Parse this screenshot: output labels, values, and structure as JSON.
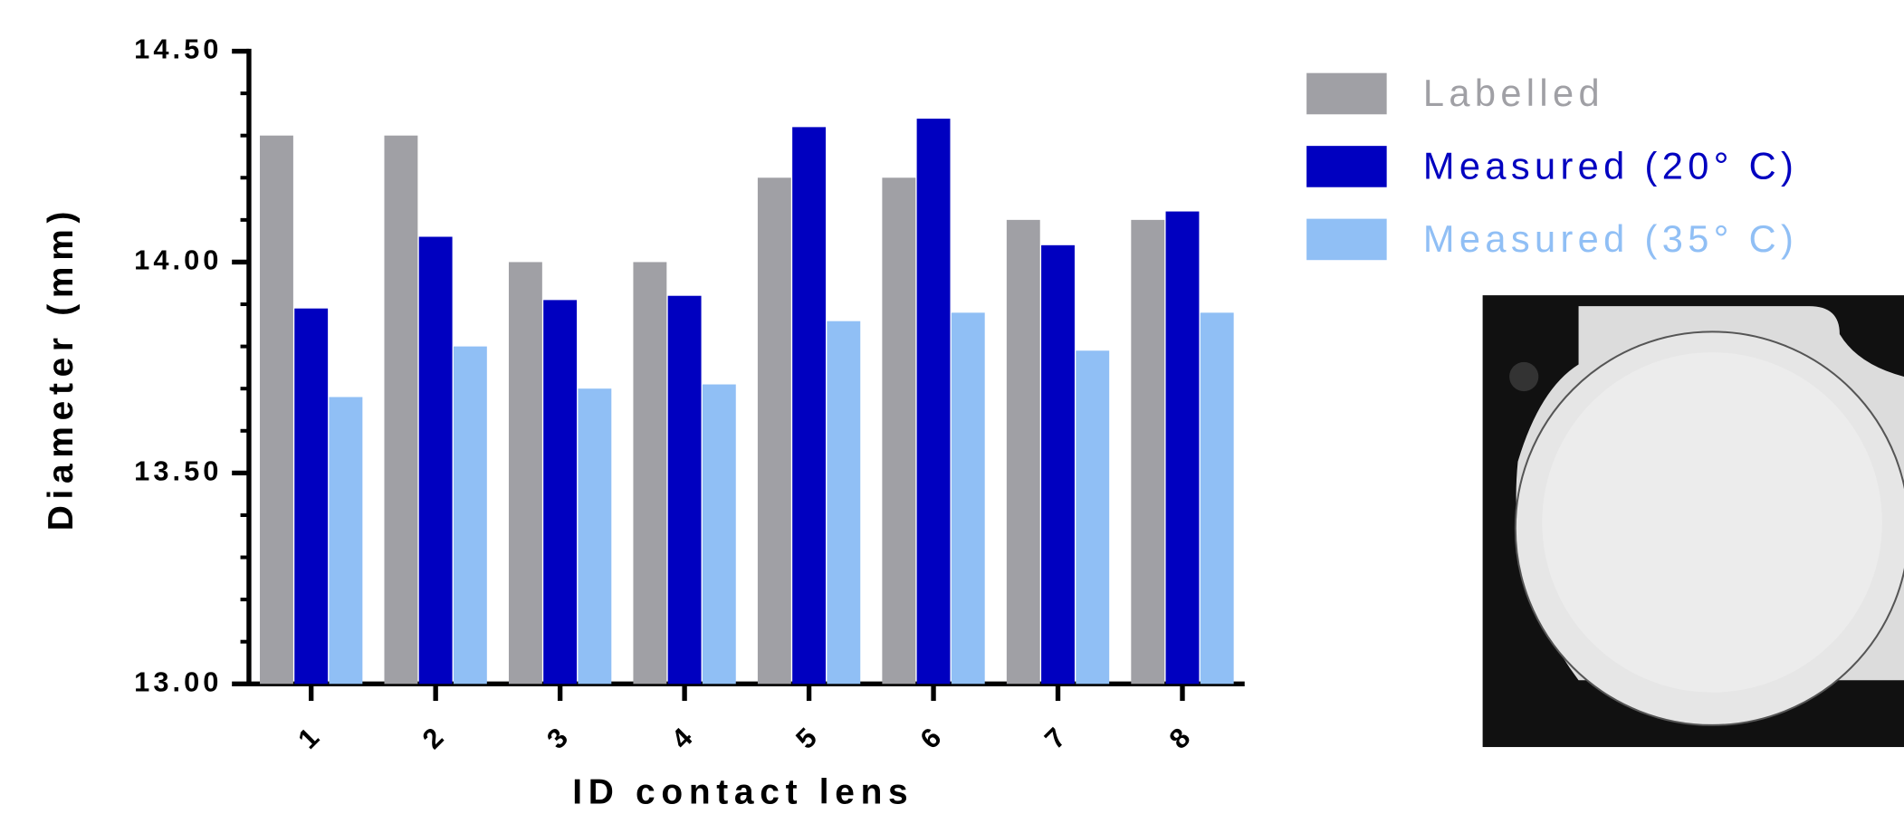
{
  "chart_data": {
    "type": "bar",
    "x_label": "ID contact lens",
    "y_label": "Diameter (mm)",
    "categories": [
      "1",
      "2",
      "3",
      "4",
      "5",
      "6",
      "7",
      "8"
    ],
    "series": [
      {
        "name": "Labelled",
        "color": "#a0a0a5",
        "values": [
          14.3,
          14.3,
          14.0,
          14.0,
          14.2,
          14.2,
          14.1,
          14.1
        ]
      },
      {
        "name": "Measured (20° C)",
        "color": "#0000c0",
        "values": [
          13.89,
          14.06,
          13.91,
          13.92,
          14.32,
          14.34,
          14.04,
          14.12
        ]
      },
      {
        "name": "Measured (35° C)",
        "color": "#90bff5",
        "values": [
          13.68,
          13.8,
          13.7,
          13.71,
          13.86,
          13.88,
          13.79,
          13.88
        ]
      }
    ],
    "ylim": [
      13,
      14.5
    ],
    "yticks": [
      {
        "value": 13,
        "label": "13.00"
      },
      {
        "value": 13.5,
        "label": "13.50"
      },
      {
        "value": 14,
        "label": "14.00"
      },
      {
        "value": 14.5,
        "label": "14.50"
      }
    ],
    "yticks_minor": [
      13.1,
      13.2,
      13.3,
      13.4,
      13.6,
      13.7,
      13.8,
      13.9,
      14.1,
      14.2,
      14.3,
      14.4
    ],
    "legend": "top-right"
  }
}
